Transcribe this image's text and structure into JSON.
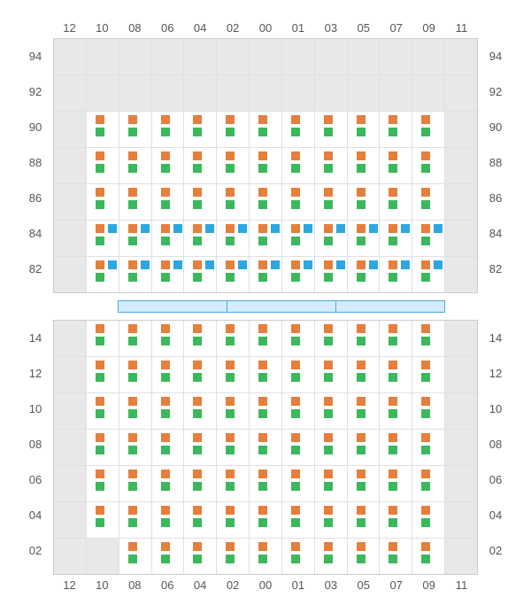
{
  "colors": {
    "orange": "#e67e3c",
    "green": "#3cb85c",
    "blue": "#2ca8e0",
    "empty_bg": "#e8e8e8",
    "grid_line": "#e0e0e0",
    "label_color": "#555555",
    "spacer_fill": "#d4ecfb",
    "spacer_border": "#4aa8e0"
  },
  "columns": [
    "12",
    "10",
    "08",
    "06",
    "04",
    "02",
    "00",
    "01",
    "03",
    "05",
    "07",
    "09",
    "11"
  ],
  "top_section": {
    "row_labels": [
      "94",
      "92",
      "90",
      "88",
      "86",
      "84",
      "82"
    ],
    "rows": [
      [
        {
          "t": "empty"
        },
        {
          "t": "empty"
        },
        {
          "t": "empty"
        },
        {
          "t": "empty"
        },
        {
          "t": "empty"
        },
        {
          "t": "empty"
        },
        {
          "t": "empty"
        },
        {
          "t": "empty"
        },
        {
          "t": "empty"
        },
        {
          "t": "empty"
        },
        {
          "t": "empty"
        },
        {
          "t": "empty"
        },
        {
          "t": "empty"
        }
      ],
      [
        {
          "t": "empty"
        },
        {
          "t": "empty"
        },
        {
          "t": "empty"
        },
        {
          "t": "empty"
        },
        {
          "t": "empty"
        },
        {
          "t": "empty"
        },
        {
          "t": "empty"
        },
        {
          "t": "empty"
        },
        {
          "t": "empty"
        },
        {
          "t": "empty"
        },
        {
          "t": "empty"
        },
        {
          "t": "empty"
        },
        {
          "t": "empty"
        }
      ],
      [
        {
          "t": "empty"
        },
        {
          "t": "og"
        },
        {
          "t": "og"
        },
        {
          "t": "og"
        },
        {
          "t": "og"
        },
        {
          "t": "og"
        },
        {
          "t": "og"
        },
        {
          "t": "og"
        },
        {
          "t": "og"
        },
        {
          "t": "og"
        },
        {
          "t": "og"
        },
        {
          "t": "og"
        },
        {
          "t": "empty"
        }
      ],
      [
        {
          "t": "empty"
        },
        {
          "t": "og"
        },
        {
          "t": "og"
        },
        {
          "t": "og"
        },
        {
          "t": "og"
        },
        {
          "t": "og"
        },
        {
          "t": "og"
        },
        {
          "t": "og"
        },
        {
          "t": "og"
        },
        {
          "t": "og"
        },
        {
          "t": "og"
        },
        {
          "t": "og"
        },
        {
          "t": "empty"
        }
      ],
      [
        {
          "t": "empty"
        },
        {
          "t": "og"
        },
        {
          "t": "og"
        },
        {
          "t": "og"
        },
        {
          "t": "og"
        },
        {
          "t": "og"
        },
        {
          "t": "og"
        },
        {
          "t": "og"
        },
        {
          "t": "og"
        },
        {
          "t": "og"
        },
        {
          "t": "og"
        },
        {
          "t": "og"
        },
        {
          "t": "empty"
        }
      ],
      [
        {
          "t": "empty"
        },
        {
          "t": "ogb"
        },
        {
          "t": "ogb"
        },
        {
          "t": "ogb"
        },
        {
          "t": "ogb"
        },
        {
          "t": "ogb"
        },
        {
          "t": "ogb"
        },
        {
          "t": "ogb"
        },
        {
          "t": "ogb"
        },
        {
          "t": "ogb"
        },
        {
          "t": "ogb"
        },
        {
          "t": "ogb"
        },
        {
          "t": "empty"
        }
      ],
      [
        {
          "t": "empty"
        },
        {
          "t": "ogb"
        },
        {
          "t": "ogb"
        },
        {
          "t": "ogb"
        },
        {
          "t": "ogb"
        },
        {
          "t": "ogb"
        },
        {
          "t": "ogb"
        },
        {
          "t": "ogb"
        },
        {
          "t": "ogb"
        },
        {
          "t": "ogb"
        },
        {
          "t": "ogb"
        },
        {
          "t": "ogb"
        },
        {
          "t": "empty"
        }
      ]
    ]
  },
  "spacer": {
    "bars": [
      0,
      0,
      1,
      1,
      1,
      1,
      1,
      1,
      1,
      1,
      1,
      1,
      0
    ],
    "segments": 3
  },
  "bottom_section": {
    "row_labels": [
      "14",
      "12",
      "10",
      "08",
      "06",
      "04",
      "02"
    ],
    "rows": [
      [
        {
          "t": "empty"
        },
        {
          "t": "og"
        },
        {
          "t": "og"
        },
        {
          "t": "og"
        },
        {
          "t": "og"
        },
        {
          "t": "og"
        },
        {
          "t": "og"
        },
        {
          "t": "og"
        },
        {
          "t": "og"
        },
        {
          "t": "og"
        },
        {
          "t": "og"
        },
        {
          "t": "og"
        },
        {
          "t": "empty"
        }
      ],
      [
        {
          "t": "empty"
        },
        {
          "t": "og"
        },
        {
          "t": "og"
        },
        {
          "t": "og"
        },
        {
          "t": "og"
        },
        {
          "t": "og"
        },
        {
          "t": "og"
        },
        {
          "t": "og"
        },
        {
          "t": "og"
        },
        {
          "t": "og"
        },
        {
          "t": "og"
        },
        {
          "t": "og"
        },
        {
          "t": "empty"
        }
      ],
      [
        {
          "t": "empty"
        },
        {
          "t": "og"
        },
        {
          "t": "og"
        },
        {
          "t": "og"
        },
        {
          "t": "og"
        },
        {
          "t": "og"
        },
        {
          "t": "og"
        },
        {
          "t": "og"
        },
        {
          "t": "og"
        },
        {
          "t": "og"
        },
        {
          "t": "og"
        },
        {
          "t": "og"
        },
        {
          "t": "empty"
        }
      ],
      [
        {
          "t": "empty"
        },
        {
          "t": "og"
        },
        {
          "t": "og"
        },
        {
          "t": "og"
        },
        {
          "t": "og"
        },
        {
          "t": "og"
        },
        {
          "t": "og"
        },
        {
          "t": "og"
        },
        {
          "t": "og"
        },
        {
          "t": "og"
        },
        {
          "t": "og"
        },
        {
          "t": "og"
        },
        {
          "t": "empty"
        }
      ],
      [
        {
          "t": "empty"
        },
        {
          "t": "og"
        },
        {
          "t": "og"
        },
        {
          "t": "og"
        },
        {
          "t": "og"
        },
        {
          "t": "og"
        },
        {
          "t": "og"
        },
        {
          "t": "og"
        },
        {
          "t": "og"
        },
        {
          "t": "og"
        },
        {
          "t": "og"
        },
        {
          "t": "og"
        },
        {
          "t": "empty"
        }
      ],
      [
        {
          "t": "empty"
        },
        {
          "t": "og"
        },
        {
          "t": "og"
        },
        {
          "t": "og"
        },
        {
          "t": "og"
        },
        {
          "t": "og"
        },
        {
          "t": "og"
        },
        {
          "t": "og"
        },
        {
          "t": "og"
        },
        {
          "t": "og"
        },
        {
          "t": "og"
        },
        {
          "t": "og"
        },
        {
          "t": "empty"
        }
      ],
      [
        {
          "t": "empty"
        },
        {
          "t": "empty"
        },
        {
          "t": "og"
        },
        {
          "t": "og"
        },
        {
          "t": "og"
        },
        {
          "t": "og"
        },
        {
          "t": "og"
        },
        {
          "t": "og"
        },
        {
          "t": "og"
        },
        {
          "t": "og"
        },
        {
          "t": "og"
        },
        {
          "t": "og"
        },
        {
          "t": "empty"
        }
      ]
    ]
  }
}
